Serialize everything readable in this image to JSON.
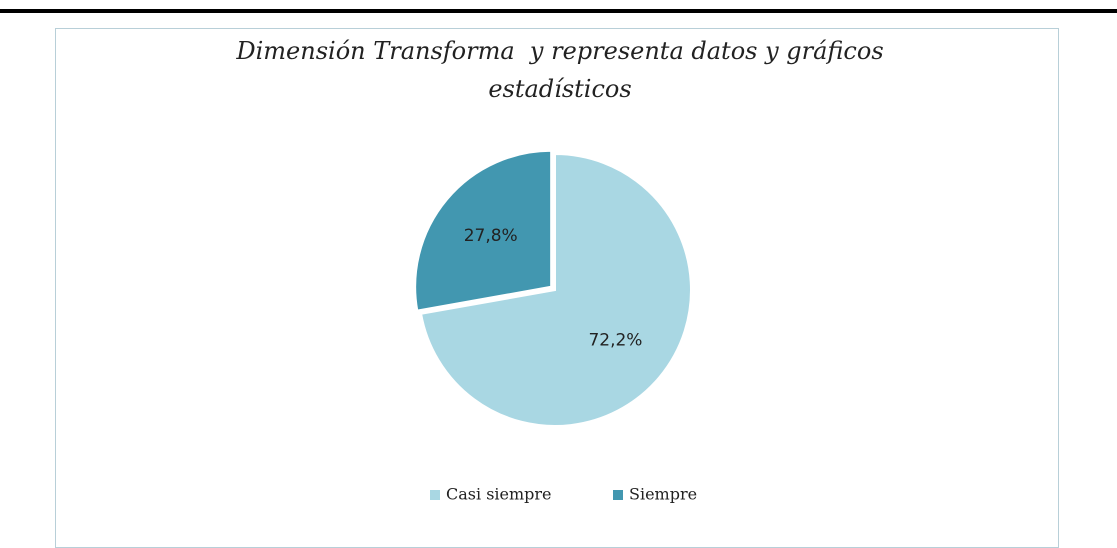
{
  "chart_data": {
    "type": "pie",
    "title": "Dimensión Transforma  y representa datos y gráficos estadísticos",
    "categories": [
      "Casi siempre",
      "Siempre"
    ],
    "values": [
      72.2,
      27.8
    ],
    "value_labels": [
      "72,2%",
      "27,8%"
    ],
    "colors": [
      "#a9d7e3",
      "#4297b0"
    ],
    "legend": "bottom"
  }
}
